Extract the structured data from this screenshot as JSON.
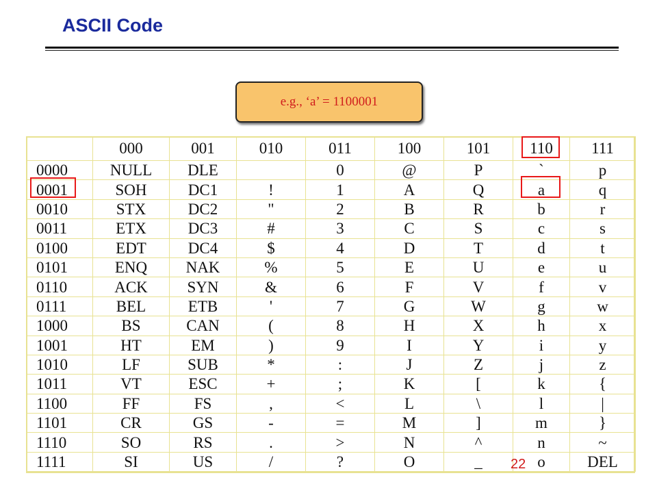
{
  "title": "ASCII Code",
  "callout": "e.g., ‘a’ = 1100001",
  "table": {
    "col_headers": [
      "000",
      "001",
      "010",
      "011",
      "100",
      "101",
      "110",
      "111"
    ],
    "rows": [
      {
        "label": "0000",
        "cells": [
          "NULL",
          "DLE",
          "",
          "0",
          "@",
          "P",
          "`",
          "p"
        ]
      },
      {
        "label": "0001",
        "cells": [
          "SOH",
          "DC1",
          "!",
          "1",
          "A",
          "Q",
          "a",
          "q"
        ]
      },
      {
        "label": "0010",
        "cells": [
          "STX",
          "DC2",
          "\"",
          "2",
          "B",
          "R",
          "b",
          "r"
        ]
      },
      {
        "label": "0011",
        "cells": [
          "ETX",
          "DC3",
          "#",
          "3",
          "C",
          "S",
          "c",
          "s"
        ]
      },
      {
        "label": "0100",
        "cells": [
          "EDT",
          "DC4",
          "$",
          "4",
          "D",
          "T",
          "d",
          "t"
        ]
      },
      {
        "label": "0101",
        "cells": [
          "ENQ",
          "NAK",
          "%",
          "5",
          "E",
          "U",
          "e",
          "u"
        ]
      },
      {
        "label": "0110",
        "cells": [
          "ACK",
          "SYN",
          "&",
          "6",
          "F",
          "V",
          "f",
          "v"
        ]
      },
      {
        "label": "0111",
        "cells": [
          "BEL",
          "ETB",
          "'",
          "7",
          "G",
          "W",
          "g",
          "w"
        ]
      },
      {
        "label": "1000",
        "cells": [
          "BS",
          "CAN",
          "(",
          "8",
          "H",
          "X",
          "h",
          "x"
        ]
      },
      {
        "label": "1001",
        "cells": [
          "HT",
          "EM",
          ")",
          "9",
          "I",
          "Y",
          "i",
          "y"
        ]
      },
      {
        "label": "1010",
        "cells": [
          "LF",
          "SUB",
          "*",
          ":",
          "J",
          "Z",
          "j",
          "z"
        ]
      },
      {
        "label": "1011",
        "cells": [
          "VT",
          "ESC",
          "+",
          ";",
          "K",
          "[",
          "k",
          "{"
        ]
      },
      {
        "label": "1100",
        "cells": [
          "FF",
          "FS",
          ",",
          "<",
          "L",
          "\\",
          "l",
          "|"
        ]
      },
      {
        "label": "1101",
        "cells": [
          "CR",
          "GS",
          "-",
          "=",
          "M",
          "]",
          "m",
          "}"
        ]
      },
      {
        "label": "1110",
        "cells": [
          "SO",
          "RS",
          ".",
          ">",
          "N",
          "^",
          "n",
          "~"
        ]
      },
      {
        "label": "1111",
        "cells": [
          "SI",
          "US",
          "/",
          "?",
          "O",
          "_",
          "o",
          "DEL"
        ]
      }
    ]
  },
  "page_number": "22",
  "colors": {
    "title": "#1a2a9c",
    "callout_bg": "#f9c46c",
    "highlight": "#e81818",
    "grid": "#e8e292"
  }
}
